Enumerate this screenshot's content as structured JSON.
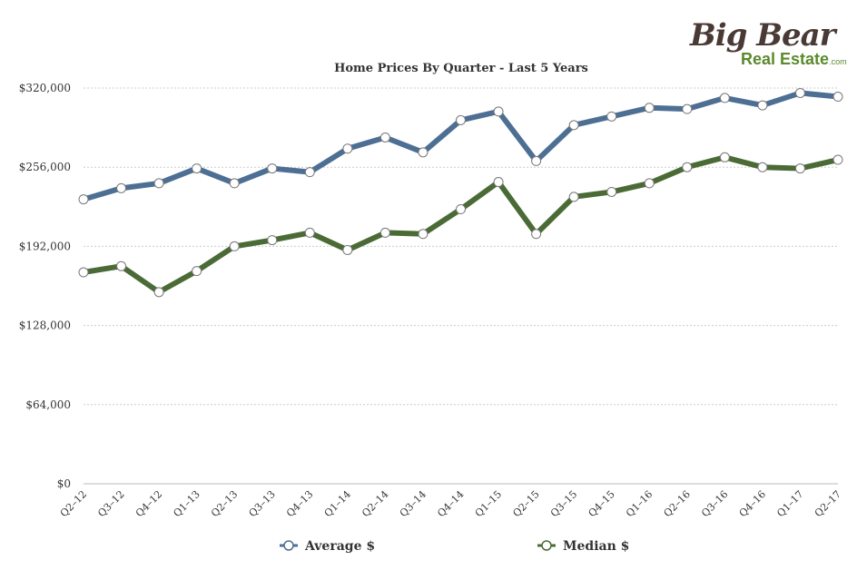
{
  "logo": {
    "big": "Big Bear",
    "real_estate": "Real Estate",
    "com": ".com"
  },
  "chart_data": {
    "type": "line",
    "title": "Home Prices By Quarter - Last 5 Years",
    "categories": [
      "Q2–12",
      "Q3–12",
      "Q4–12",
      "Q1–13",
      "Q2–13",
      "Q3–13",
      "Q4–13",
      "Q1–14",
      "Q2–14",
      "Q3–14",
      "Q4–14",
      "Q1–15",
      "Q2–15",
      "Q3–15",
      "Q4–15",
      "Q1–16",
      "Q2–16",
      "Q3–16",
      "Q4–16",
      "Q1–17",
      "Q2–17"
    ],
    "ylim": [
      0,
      320000
    ],
    "yticks": [
      0,
      64000,
      128000,
      192000,
      256000,
      320000
    ],
    "ytick_labels": [
      "$0",
      "$64,000",
      "$128,000",
      "$192,000",
      "$256,000",
      "$320,000"
    ],
    "grid": true,
    "legend": "bottom",
    "series": [
      {
        "name": "Average $",
        "color": "#4e6f94",
        "values": [
          230000,
          239000,
          243000,
          255000,
          243000,
          255000,
          252000,
          271000,
          280000,
          268000,
          294000,
          301000,
          261000,
          290000,
          297000,
          304000,
          303000,
          312000,
          306000,
          316000,
          313000
        ]
      },
      {
        "name": "Median $",
        "color": "#4b6b36",
        "values": [
          171000,
          176000,
          155000,
          172000,
          192000,
          197000,
          203000,
          189000,
          203000,
          202000,
          222000,
          244000,
          202000,
          232000,
          236000,
          243000,
          256000,
          264000,
          256000,
          255000,
          262000
        ]
      }
    ]
  }
}
